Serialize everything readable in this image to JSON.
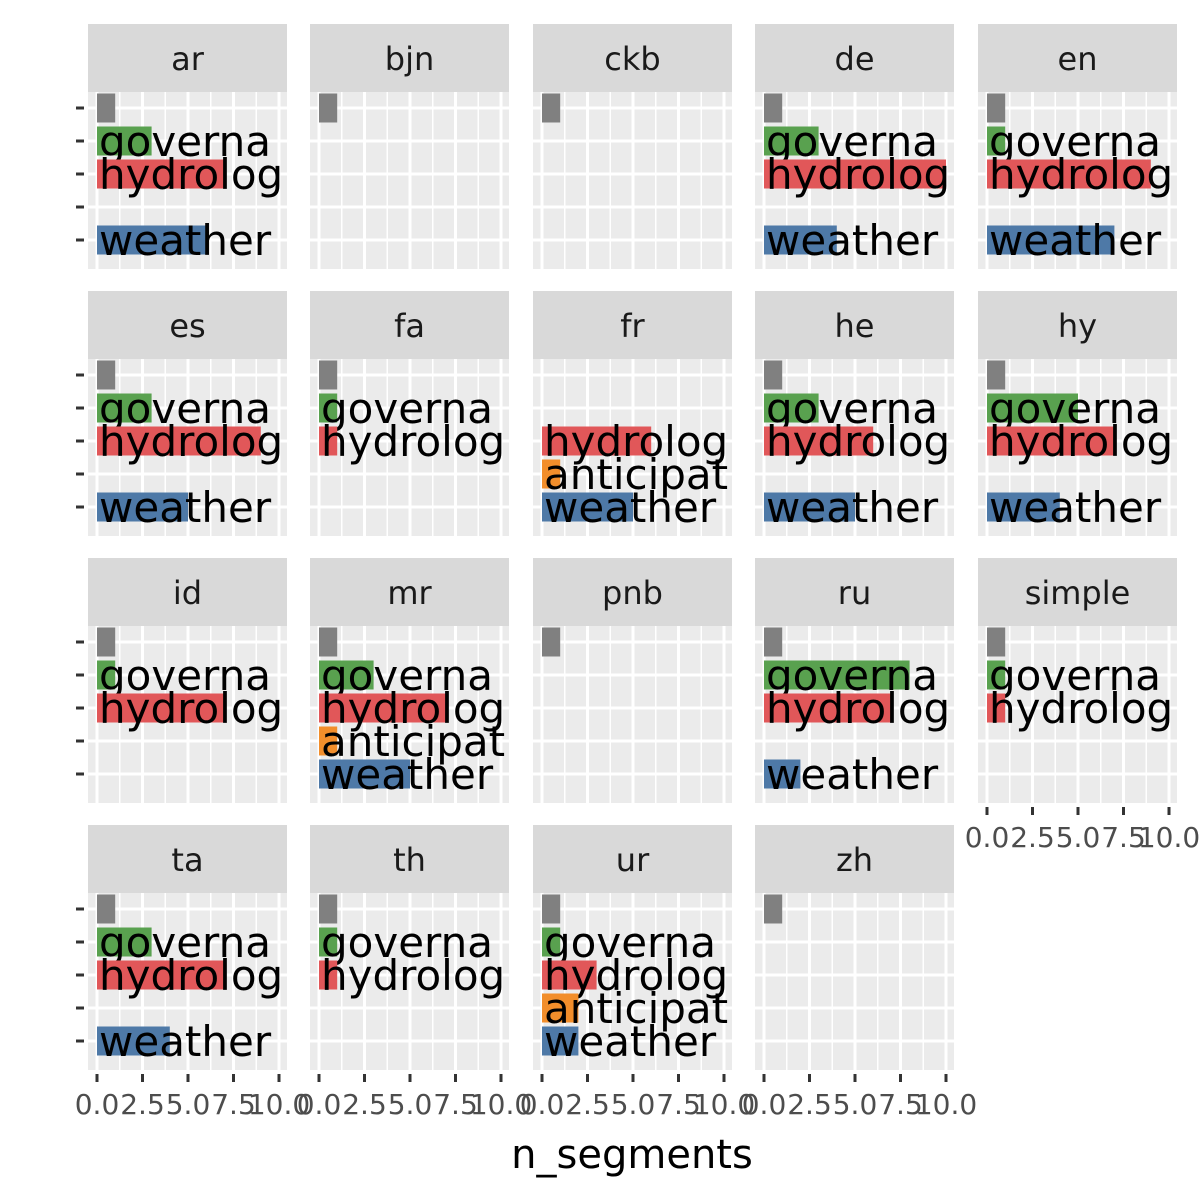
{
  "chart_data": {
    "type": "bar",
    "orientation": "horizontal",
    "facet_layout": "wrap",
    "facet_columns": 5,
    "xlabel": "n_segments",
    "ylabel": "",
    "xlim": [
      0,
      10
    ],
    "x_ticks": [
      "0.0",
      "2.5",
      "5.0",
      "7.5",
      "10.0"
    ],
    "grid": true,
    "legend": "none",
    "categories": [
      "",
      "governance",
      "hydrology",
      "anticipation",
      "weather"
    ],
    "category_labels": [
      "",
      "governa",
      "hydrolog",
      "anticipat",
      "weather"
    ],
    "category_colors": [
      "#808080",
      "#59a14f",
      "#e15759",
      "#f28e2b",
      "#4e79a7"
    ],
    "panel_background": "#ebebeb",
    "strip_background": "#d9d9d9",
    "panels": [
      {
        "name": "ar",
        "values": [
          1,
          3,
          7,
          null,
          6
        ]
      },
      {
        "name": "bjn",
        "values": [
          1,
          null,
          null,
          null,
          null
        ]
      },
      {
        "name": "ckb",
        "values": [
          1,
          null,
          null,
          null,
          null
        ]
      },
      {
        "name": "de",
        "values": [
          1,
          3,
          10,
          null,
          4
        ]
      },
      {
        "name": "en",
        "values": [
          1,
          1,
          9,
          null,
          7
        ]
      },
      {
        "name": "es",
        "values": [
          1,
          3,
          9,
          null,
          5
        ]
      },
      {
        "name": "fa",
        "values": [
          1,
          1,
          1,
          null,
          null
        ]
      },
      {
        "name": "fr",
        "values": [
          null,
          null,
          6,
          1,
          5
        ]
      },
      {
        "name": "he",
        "values": [
          1,
          3,
          6,
          null,
          5
        ]
      },
      {
        "name": "hy",
        "values": [
          1,
          5,
          7,
          null,
          4
        ]
      },
      {
        "name": "id",
        "values": [
          1,
          1,
          7,
          null,
          null
        ]
      },
      {
        "name": "mr",
        "values": [
          1,
          3,
          7,
          1,
          5
        ]
      },
      {
        "name": "pnb",
        "values": [
          1,
          null,
          null,
          null,
          null
        ]
      },
      {
        "name": "ru",
        "values": [
          1,
          8,
          7,
          null,
          2
        ]
      },
      {
        "name": "simple",
        "values": [
          1,
          1,
          1,
          null,
          null
        ]
      },
      {
        "name": "ta",
        "values": [
          1,
          3,
          7,
          null,
          4
        ]
      },
      {
        "name": "th",
        "values": [
          1,
          1,
          1,
          null,
          null
        ]
      },
      {
        "name": "ur",
        "values": [
          1,
          1,
          3,
          2,
          2
        ]
      },
      {
        "name": "zh",
        "values": [
          1,
          null,
          null,
          null,
          null
        ]
      }
    ]
  }
}
